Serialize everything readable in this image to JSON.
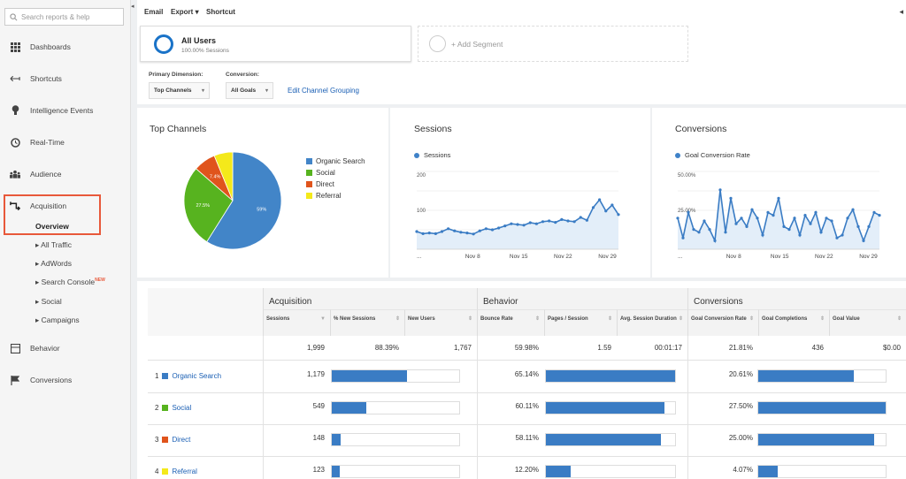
{
  "sidebar": {
    "search_placeholder": "Search reports & help",
    "items": [
      {
        "label": "Dashboards",
        "icon": "grid-icon"
      },
      {
        "label": "Shortcuts",
        "icon": "shortcut-arrow-icon"
      },
      {
        "label": "Intelligence Events",
        "icon": "lightbulb-icon"
      },
      {
        "label": "Real-Time",
        "icon": "clock-icon"
      },
      {
        "label": "Audience",
        "icon": "people-icon"
      },
      {
        "label": "Acquisition",
        "icon": "acquisition-arrows-icon"
      },
      {
        "label": "Behavior",
        "icon": "behavior-window-icon"
      },
      {
        "label": "Conversions",
        "icon": "flag-icon"
      }
    ],
    "acquisition_sub": {
      "overview": "Overview",
      "items": [
        "All Traffic",
        "AdWords",
        "Search Console",
        "Social",
        "Campaigns"
      ],
      "new_tag": "NEW"
    }
  },
  "topbar": {
    "email": "Email",
    "export": "Export",
    "shortcut": "Shortcut"
  },
  "segments": {
    "active_title": "All Users",
    "active_sub": "100.00% Sessions",
    "add_label": "+ Add Segment"
  },
  "controls": {
    "primary_dimension_label": "Primary Dimension:",
    "primary_dimension_value": "Top Channels",
    "conversion_label": "Conversion:",
    "conversion_value": "All Goals",
    "edit_link": "Edit Channel Grouping"
  },
  "panels": {
    "top_channels_title": "Top Channels",
    "sessions_title": "Sessions",
    "conversions_title": "Conversions"
  },
  "chart_data": [
    {
      "type": "pie",
      "title": "Top Channels",
      "categories": [
        "Organic Search",
        "Social",
        "Direct",
        "Referral"
      ],
      "values": [
        59,
        27.5,
        7.4,
        6.2
      ],
      "slice_labels": [
        "59%",
        "27.5%",
        "7.4%",
        ""
      ],
      "colors": [
        "#4285c8",
        "#57b31f",
        "#e0541c",
        "#f4e91a"
      ]
    },
    {
      "type": "area",
      "title": "Sessions",
      "series": [
        {
          "name": "Sessions",
          "values": [
            50,
            44,
            46,
            44,
            50,
            58,
            52,
            48,
            46,
            43,
            52,
            58,
            55,
            60,
            66,
            72,
            70,
            68,
            75,
            72,
            78,
            80,
            76,
            84,
            80,
            78,
            90,
            82,
            118,
            140,
            108,
            125,
            98
          ]
        }
      ],
      "y_ticks": [
        "200",
        "100"
      ],
      "x_ticks": [
        "...",
        "Nov 8",
        "Nov 15",
        "Nov 22",
        "Nov 29"
      ],
      "ylim": [
        0,
        220
      ]
    },
    {
      "type": "area",
      "title": "Conversions",
      "series": [
        {
          "name": "Goal Conversion Rate",
          "values": [
            22,
            8,
            26,
            14,
            12,
            20,
            14,
            6,
            42,
            12,
            36,
            18,
            22,
            16,
            28,
            22,
            10,
            26,
            24,
            36,
            16,
            14,
            22,
            10,
            24,
            18,
            26,
            12,
            22,
            20,
            8,
            10,
            22,
            28,
            16,
            6,
            16,
            26,
            24
          ]
        }
      ],
      "y_ticks": [
        "50.00%",
        "25.00%"
      ],
      "x_ticks": [
        "...",
        "Nov 8",
        "Nov 15",
        "Nov 22",
        "Nov 29"
      ],
      "ylim": [
        0,
        55
      ]
    }
  ],
  "table": {
    "groups": [
      "Acquisition",
      "Behavior",
      "Conversions"
    ],
    "columns": [
      "Sessions",
      "% New Sessions",
      "New Users",
      "Bounce Rate",
      "Pages / Session",
      "Avg. Session Duration",
      "Goal Conversion Rate",
      "Goal Completions",
      "Goal Value"
    ],
    "totals": [
      "1,999",
      "88.39%",
      "1,767",
      "59.98%",
      "1.59",
      "00:01:17",
      "21.81%",
      "436",
      "$0.00"
    ],
    "rows": [
      {
        "num": "1",
        "label": "Organic Search",
        "color": "#3a7cc4",
        "sessions": "1,179",
        "sessions_bar": 0.59,
        "bounce": "65.14%",
        "bounce_bar": 1.0,
        "conv": "20.61%",
        "conv_bar": 0.75
      },
      {
        "num": "2",
        "label": "Social",
        "color": "#57b31f",
        "sessions": "549",
        "sessions_bar": 0.27,
        "bounce": "60.11%",
        "bounce_bar": 0.92,
        "conv": "27.50%",
        "conv_bar": 1.0
      },
      {
        "num": "3",
        "label": "Direct",
        "color": "#e0541c",
        "sessions": "148",
        "sessions_bar": 0.07,
        "bounce": "58.11%",
        "bounce_bar": 0.89,
        "conv": "25.00%",
        "conv_bar": 0.91
      },
      {
        "num": "4",
        "label": "Referral",
        "color": "#f4e91a",
        "sessions": "123",
        "sessions_bar": 0.06,
        "bounce": "12.20%",
        "bounce_bar": 0.19,
        "conv": "4.07%",
        "conv_bar": 0.15
      }
    ]
  }
}
